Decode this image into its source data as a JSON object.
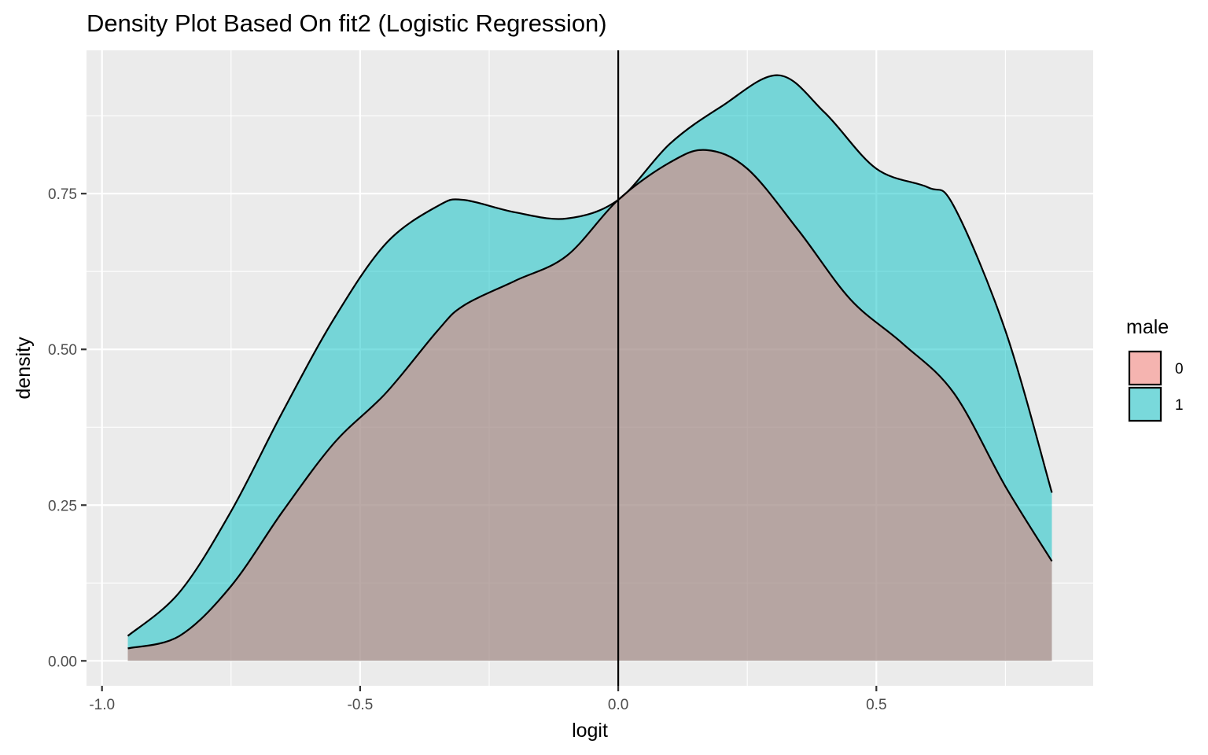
{
  "chart_data": {
    "type": "area",
    "title": "Density Plot Based On fit2 (Logistic Regression)",
    "xlabel": "logit",
    "ylabel": "density",
    "xlim": [
      -1.03,
      0.92
    ],
    "ylim": [
      -0.04,
      0.98
    ],
    "x_ticks": [
      -1.0,
      -0.5,
      0.0,
      0.5
    ],
    "x_tick_labels": [
      "-1.0",
      "-0.5",
      "0.0",
      "0.5"
    ],
    "y_ticks": [
      0.0,
      0.25,
      0.5,
      0.75
    ],
    "y_tick_labels": [
      "0.00",
      "0.25",
      "0.50",
      "0.75"
    ],
    "vline_x": 0.0,
    "grid": true,
    "legend": {
      "title": "male",
      "position": "right"
    },
    "series": [
      {
        "name": "0",
        "color": "#F8766D",
        "x": [
          -0.95,
          -0.85,
          -0.75,
          -0.65,
          -0.55,
          -0.45,
          -0.35,
          -0.3,
          -0.2,
          -0.1,
          0.0,
          0.1,
          0.17,
          0.25,
          0.35,
          0.45,
          0.55,
          0.65,
          0.75,
          0.84
        ],
        "values": [
          0.02,
          0.04,
          0.12,
          0.24,
          0.35,
          0.43,
          0.53,
          0.57,
          0.61,
          0.65,
          0.74,
          0.8,
          0.82,
          0.79,
          0.69,
          0.58,
          0.51,
          0.43,
          0.28,
          0.16
        ]
      },
      {
        "name": "1",
        "color": "#00BFC4",
        "x": [
          -0.95,
          -0.85,
          -0.75,
          -0.65,
          -0.55,
          -0.45,
          -0.35,
          -0.3,
          -0.2,
          -0.1,
          0.0,
          0.1,
          0.2,
          0.31,
          0.4,
          0.5,
          0.6,
          0.65,
          0.75,
          0.84
        ],
        "values": [
          0.04,
          0.11,
          0.24,
          0.4,
          0.55,
          0.67,
          0.73,
          0.74,
          0.72,
          0.71,
          0.74,
          0.83,
          0.89,
          0.94,
          0.88,
          0.79,
          0.76,
          0.73,
          0.53,
          0.27
        ]
      }
    ]
  }
}
